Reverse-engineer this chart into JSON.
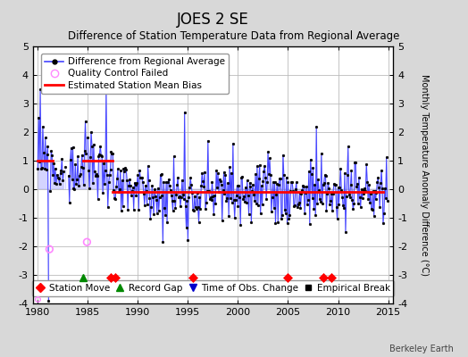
{
  "title": "JOES 2 SE",
  "subtitle": "Difference of Station Temperature Data from Regional Average",
  "ylabel": "Monthly Temperature Anomaly Difference (°C)",
  "credit": "Berkeley Earth",
  "ylim": [
    -4,
    5
  ],
  "yticks": [
    -4,
    -3,
    -2,
    -1,
    0,
    1,
    2,
    3,
    4,
    5
  ],
  "xlim": [
    1979.5,
    2015.5
  ],
  "xticks": [
    1980,
    1985,
    1990,
    1995,
    2000,
    2005,
    2010,
    2015
  ],
  "bg_color": "#d8d8d8",
  "plot_bg": "#ffffff",
  "grid_color": "#bbbbbb",
  "line_color": "#4444ff",
  "line_fill": "#aaaaff",
  "marker_color": "#000000",
  "qc_color": "#ff88ff",
  "bias_color": "#ff0000",
  "station_move_color": "#ff0000",
  "record_gap_color": "#008800",
  "tobs_color": "#0000cc",
  "emp_break_color": "#000000",
  "station_moves": [
    1987.25,
    1987.75,
    1995.5,
    2005.0,
    2008.5,
    2009.3
  ],
  "record_gaps": [
    1984.5
  ],
  "tobs_changes": [],
  "emp_breaks": [],
  "qc_points": [
    [
      1981.2,
      -2.1
    ],
    [
      1984.9,
      -1.85
    ]
  ],
  "bias_segments": [
    {
      "x": [
        1980.0,
        1981.5
      ],
      "y": [
        1.0,
        1.0
      ]
    },
    {
      "x": [
        1984.5,
        1987.5
      ],
      "y": [
        1.0,
        1.0
      ]
    },
    {
      "x": [
        1987.5,
        2014.5
      ],
      "y": [
        -0.1,
        -0.1
      ]
    }
  ],
  "marker_y": -3.1,
  "legend_fontsize": 7.5,
  "tick_fontsize": 8,
  "title_fontsize": 12,
  "subtitle_fontsize": 8.5,
  "seed": 99
}
